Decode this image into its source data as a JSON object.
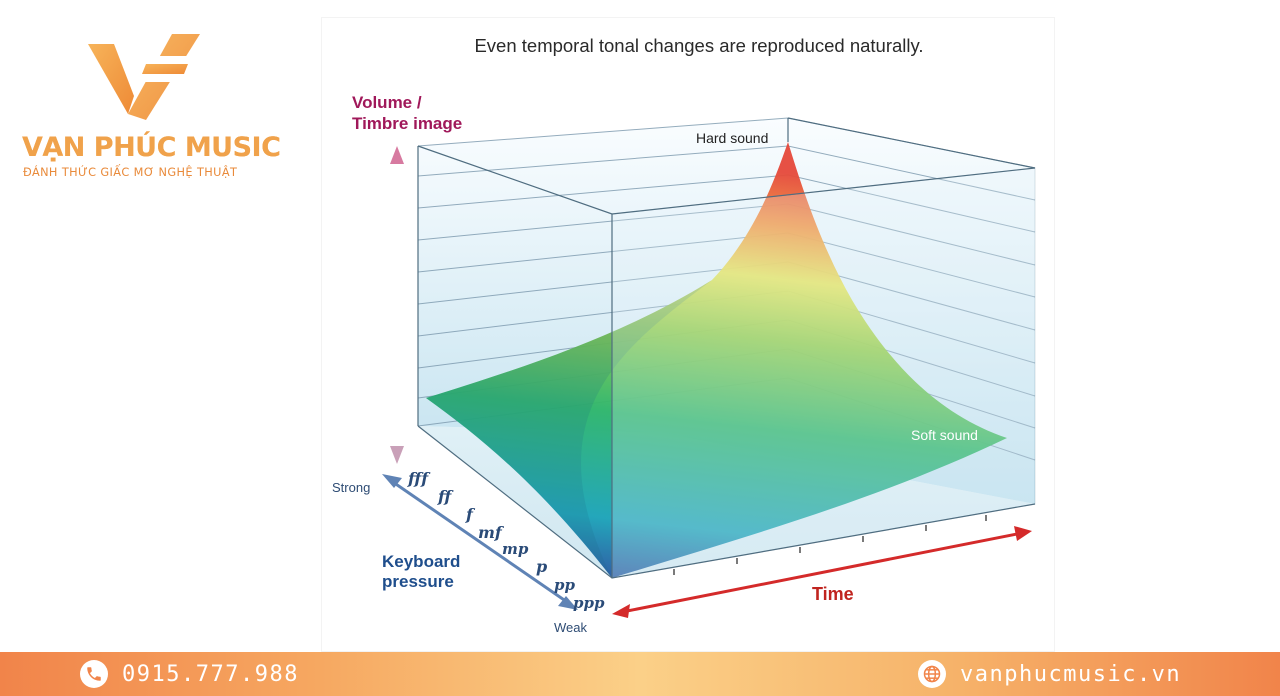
{
  "brand": {
    "name": "VẠN PHÚC MUSIC",
    "slogan": "ĐÁNH THỨC GIẤC MƠ NGHỆ THUẬT",
    "logo_icon": "vf-logo-icon"
  },
  "figure": {
    "title": "Even temporal tonal changes are reproduced naturally.",
    "y_axis_label_line1": "Volume /",
    "y_axis_label_line2": "Timbre image",
    "hard_label": "Hard sound",
    "soft_label": "Soft sound",
    "strong_label": "Strong",
    "weak_label": "Weak",
    "pressure_label_line1": "Keyboard",
    "pressure_label_line2": "pressure",
    "time_label": "Time",
    "dynamics": [
      "fff",
      "ff",
      "f",
      "mf",
      "mp",
      "p",
      "pp",
      "ppp"
    ]
  },
  "colors": {
    "accent_orange": "#f1844a",
    "volume_label": "#a0185a",
    "pressure_label": "#1f4e8c",
    "time_arrow": "#d42a2a",
    "pressure_arrow": "#5f83b5"
  },
  "footer": {
    "phone": "0915.777.988",
    "website": "vanphucmusic.vn",
    "phone_icon": "phone-icon",
    "web_icon": "globe-icon"
  }
}
